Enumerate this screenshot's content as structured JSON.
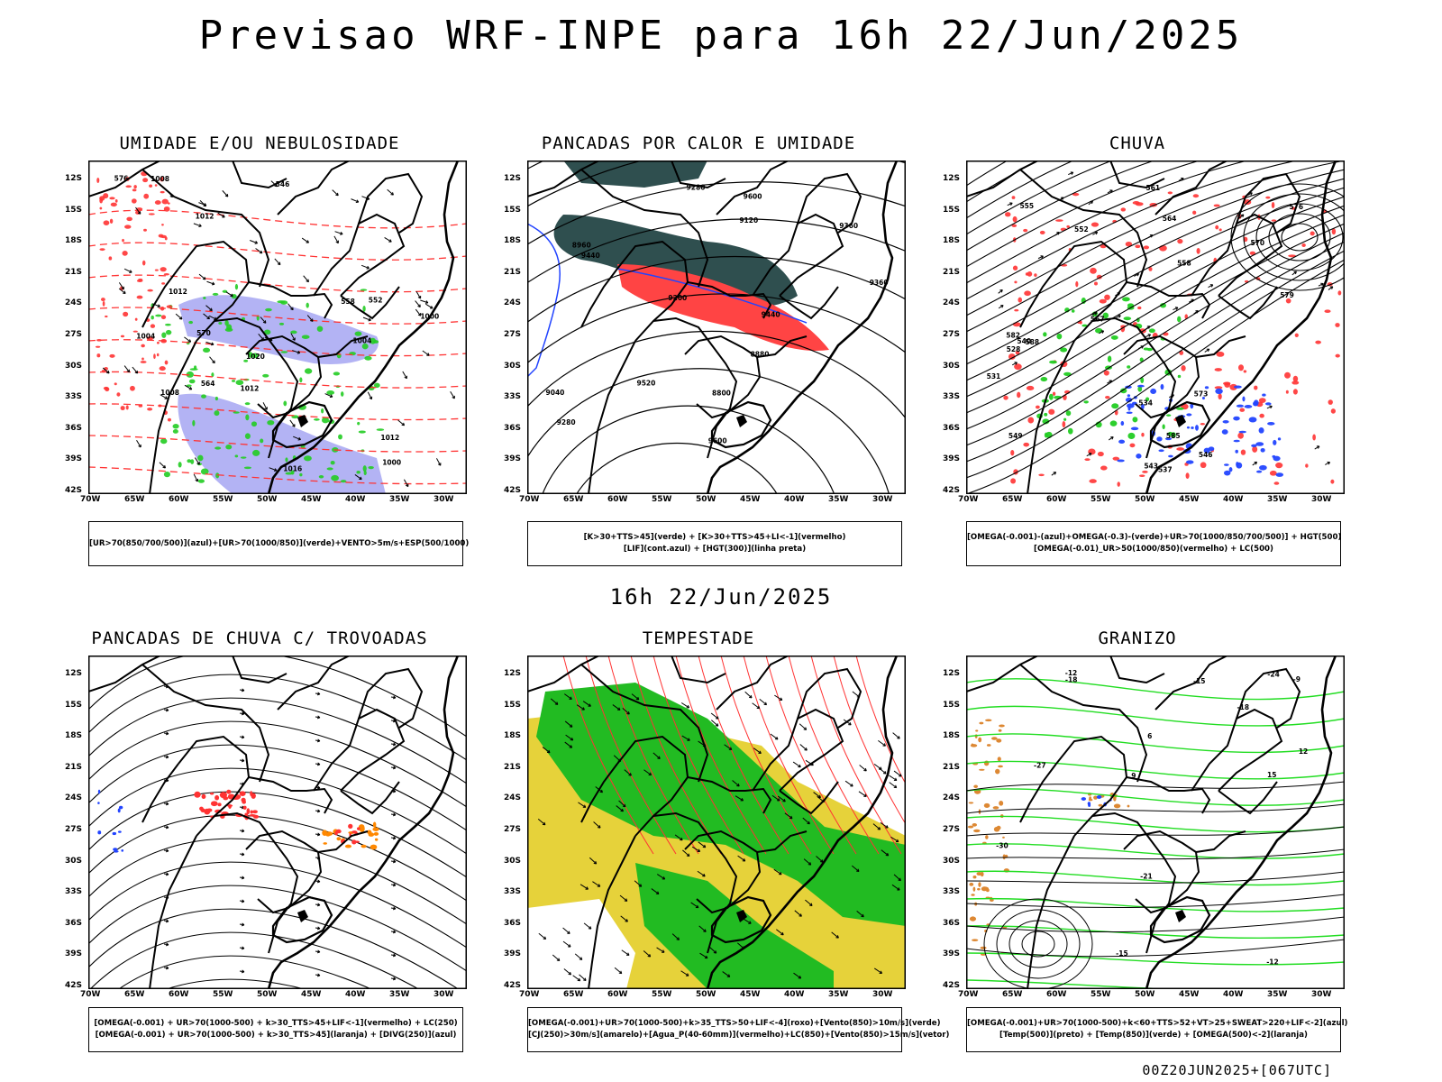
{
  "header": {
    "title": "Previsao WRF-INPE  para 16h 22/Jun/2025",
    "subtitle": "16h 22/Jun/2025",
    "stamp": "00Z20JUN2025+[067UTC]"
  },
  "axes": {
    "lat_labels": [
      "12S",
      "15S",
      "18S",
      "21S",
      "24S",
      "27S",
      "30S",
      "33S",
      "36S",
      "39S",
      "42S"
    ],
    "lon_labels": [
      "70W",
      "65W",
      "60W",
      "55W",
      "50W",
      "45W",
      "40W",
      "35W",
      "30W"
    ]
  },
  "panels": [
    {
      "id": "umidade",
      "title": "UMIDADE E/OU NEBULOSIDADE",
      "legend": [
        "[UR>70(850/700/500)](azul)+[UR>70(1000/850)](verde)+VENTO>5m/s+ESP(500/1000)"
      ],
      "contour_labels": [
        "1012",
        "1008",
        "1004",
        "1000",
        "1016",
        "1020",
        "1012",
        "1008",
        "1004",
        "1000",
        "1012",
        "1012",
        "570",
        "564",
        "558",
        "552",
        "546",
        "576"
      ],
      "fields": {
        "blue": "#9a9af0",
        "green": "#22cc22",
        "red": "#ff3333",
        "black": "#000000"
      }
    },
    {
      "id": "pancadas-calor",
      "title": "PANCADAS POR CALOR E UMIDADE",
      "legend": [
        "[K>30+TTS>45](verde) + [K>30+TTS>45+LI<-1](vermelho)",
        "[LIF](cont.azul) + [HGT(300)](linha preta)"
      ],
      "contour_labels": [
        "9600",
        "9600",
        "9520",
        "9440",
        "9360",
        "9280",
        "9200",
        "9120",
        "9040",
        "8960",
        "8880",
        "8800",
        "9440",
        "9280",
        "9360"
      ],
      "fields": {
        "darkgreen": "#2f4f4f",
        "red": "#ff4444",
        "blue": "#2244ff"
      }
    },
    {
      "id": "chuva",
      "title": "CHUVA",
      "legend": [
        "[OMEGA(-0.001)-(azul)+OMEGA(-0.3)-(verde)+UR>70(1000/850/700/500)] + HGT(500)",
        "[OMEGA(-0.01)_UR>50(1000/850)(vermelho) + LC(500)"
      ],
      "contour_labels": [
        "582",
        "579",
        "576",
        "573",
        "570",
        "567",
        "564",
        "561",
        "558",
        "555",
        "552",
        "549",
        "546",
        "543",
        "540",
        "537",
        "534",
        "531",
        "528",
        "585",
        "588"
      ],
      "fields": {
        "red": "#ff3333",
        "green": "#22cc22",
        "blue": "#2244ff"
      }
    },
    {
      "id": "pancadas-trovoadas",
      "title": "PANCADAS DE CHUVA C/ TROVOADAS",
      "legend": [
        "[OMEGA(-0.001) + UR>70(1000-500) + k>30_TTS>45+LIF<-1](vermelho) + LC(250)",
        "[OMEGA(-0.001) + UR>70(1000-500) + k>30_TTS>45](laranja) + [DIVG(250)](azul)"
      ],
      "contour_labels": [],
      "fields": {
        "red": "#ff3333",
        "orange": "#ff8800",
        "blue": "#2244ff"
      }
    },
    {
      "id": "tempestade",
      "title": "TEMPESTADE",
      "legend": [
        "[OMEGA(-0.001)+UR>70(1000-500)+k>35_TTS>50+LIF<-4](roxo)+[Vento(850)>10m/s](verde)",
        "[CJ(250)>30m/s](amarelo)+[Agua_P(40-60mm)](vermelho)+LC(850)+[Vento(850)>15m/s](vetor)"
      ],
      "contour_labels": [],
      "fields": {
        "yellow": "#e6d23a",
        "green": "#22bb22",
        "red": "#ff3333"
      }
    },
    {
      "id": "granizo",
      "title": "GRANIZO",
      "legend": [
        "[OMEGA(-0.001)+UR>70(1000-500)+k<60+TTS>52+VT>25+SWEAT>220+LIF<-2](azul)",
        "[Temp(500)](preto) + [Temp(850)](verde) + [OMEGA(500)<-2](laranja)"
      ],
      "contour_labels": [
        "-9",
        "-12",
        "-15",
        "-18",
        "-21",
        "-24",
        "-27",
        "-30",
        "-12",
        "-15",
        "-18",
        "12",
        "15",
        "9",
        "6"
      ],
      "fields": {
        "green": "#22dd22",
        "black": "#000000",
        "orange": "#dd8833",
        "blue": "#2244ff"
      }
    }
  ]
}
